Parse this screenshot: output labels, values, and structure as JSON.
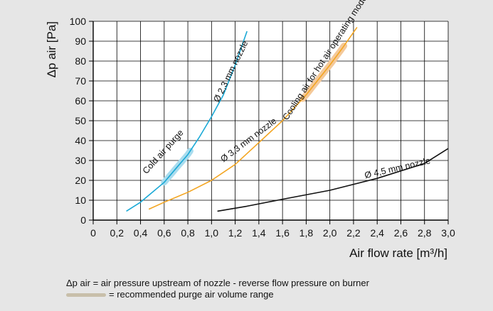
{
  "colors": {
    "panel": "#e6e6e6",
    "plot_bg": "#ffffff",
    "grid": "#000000",
    "cyan": "#1aa9d6",
    "orange": "#f3a521",
    "black": "#111111",
    "purge_cold": "#a9dcee",
    "purge_hot": "#f4c99a",
    "legend_swatch": "#c8bfaa"
  },
  "chart_data": {
    "type": "line",
    "title": "",
    "xlabel": "Air flow rate [m³/h]",
    "ylabel": "Δp air [Pa]",
    "xlim": [
      0,
      3.0
    ],
    "ylim": [
      0,
      100
    ],
    "grid": true,
    "x_ticks": [
      "0",
      "0,2",
      "0,4",
      "0,6",
      "0,8",
      "1,0",
      "1,2",
      "1,4",
      "1,6",
      "1,8",
      "2,0",
      "2,2",
      "2,4",
      "2,6",
      "2,8",
      "3,0"
    ],
    "y_ticks": [
      "0",
      "10",
      "20",
      "30",
      "40",
      "50",
      "60",
      "70",
      "80",
      "90",
      "100"
    ],
    "series": [
      {
        "name": "Ø 2,3 mm nozzle",
        "color": "#1aa9d6",
        "points": [
          [
            0.28,
            4.5
          ],
          [
            0.4,
            9
          ],
          [
            0.5,
            14
          ],
          [
            0.6,
            19
          ],
          [
            0.7,
            26
          ],
          [
            0.8,
            33
          ],
          [
            0.9,
            42
          ],
          [
            1.0,
            52
          ],
          [
            1.1,
            63
          ],
          [
            1.2,
            78
          ],
          [
            1.3,
            95
          ]
        ]
      },
      {
        "name": "Ø 3,3 mm nozzle",
        "color": "#f3a521",
        "points": [
          [
            0.47,
            5.5
          ],
          [
            0.6,
            9
          ],
          [
            0.8,
            14
          ],
          [
            1.0,
            20
          ],
          [
            1.2,
            28
          ],
          [
            1.4,
            39
          ],
          [
            1.6,
            50
          ],
          [
            1.8,
            63
          ],
          [
            2.0,
            78
          ],
          [
            2.1,
            86
          ],
          [
            2.23,
            97
          ]
        ]
      },
      {
        "name": "Ø 4,5 mm nozzle",
        "color": "#111111",
        "points": [
          [
            1.05,
            4.5
          ],
          [
            1.3,
            7
          ],
          [
            1.6,
            10.5
          ],
          [
            2.0,
            15
          ],
          [
            2.4,
            21
          ],
          [
            2.8,
            28.5
          ],
          [
            3.0,
            36
          ]
        ]
      }
    ],
    "purge_ranges": [
      {
        "series": "Ø 2,3 mm nozzle",
        "x_from": 0.6,
        "x_to": 0.82,
        "label": "Cold air purge"
      },
      {
        "series": "Ø 3,3 mm nozzle",
        "x_from": 1.77,
        "x_to": 2.12,
        "label": "Cooling air for hot air operating mode"
      }
    ],
    "annotations": [
      {
        "text": "Ø 2,3 mm nozzle",
        "x": 1.06,
        "y": 59,
        "angle": -64
      },
      {
        "text": "Ø 3,3 mm nozzle",
        "x": 1.1,
        "y": 29,
        "angle": -37
      },
      {
        "text": "Ø 4,5 mm nozzle",
        "x": 2.3,
        "y": 21,
        "angle": -13
      },
      {
        "text": "Cold air purge",
        "x": 0.45,
        "y": 23,
        "angle": -48
      },
      {
        "text": "Cooling air for hot air operating mode",
        "x": 1.64,
        "y": 50,
        "angle": -57
      }
    ]
  },
  "footnotes": {
    "line1": "Δp air = air pressure upstream of nozzle - reverse flow pressure on burner",
    "line2": "= recommended purge air volume range"
  }
}
